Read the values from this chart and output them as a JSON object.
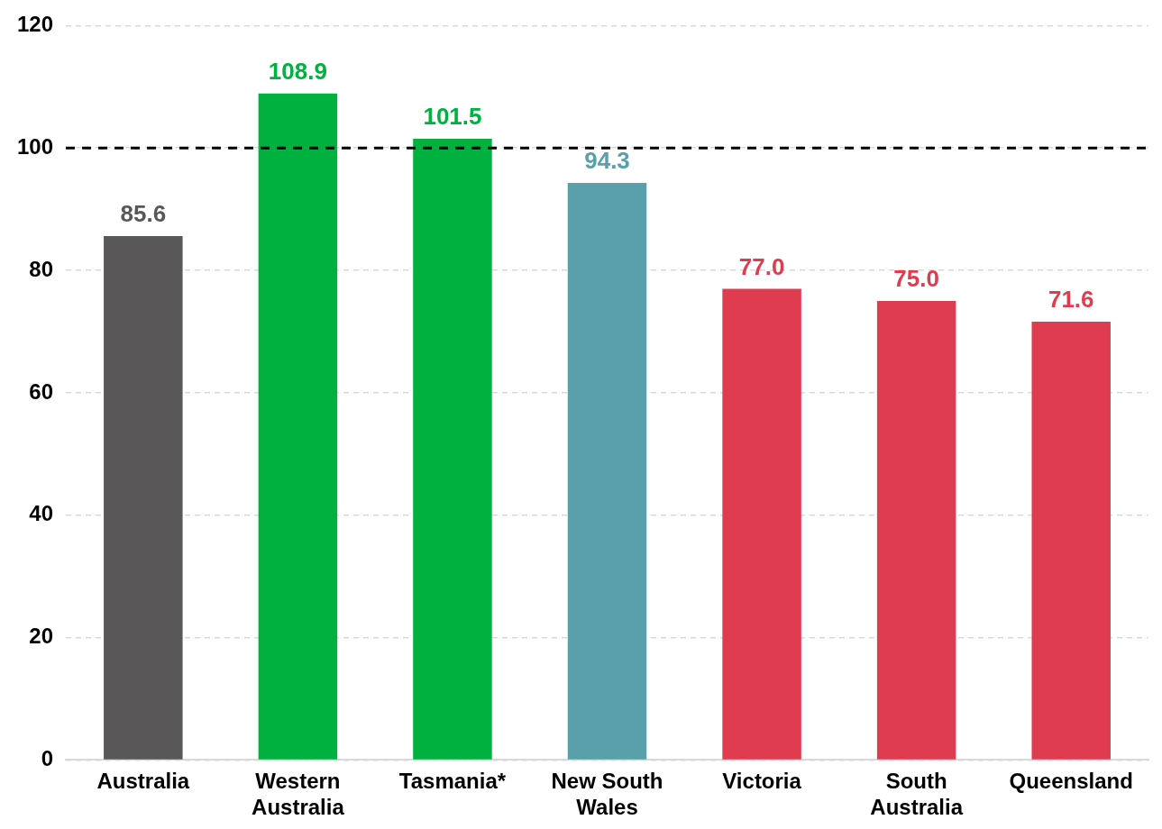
{
  "chart_data": {
    "type": "bar",
    "categories": [
      "Australia",
      "Western Australia",
      "Tasmania*",
      "New South Wales",
      "Victoria",
      "South Australia",
      "Queensland"
    ],
    "values": [
      85.6,
      108.9,
      101.5,
      94.3,
      77.0,
      75.0,
      71.6
    ],
    "colors": [
      "#595758",
      "#00b140",
      "#00b140",
      "#5aa0aa",
      "#e03c50",
      "#e03c50",
      "#e03c50"
    ],
    "value_labels": [
      "85.6",
      "108.9",
      "101.5",
      "94.3",
      "77.0",
      "75.0",
      "71.6"
    ],
    "ylim": [
      0,
      120
    ],
    "yticks": [
      0,
      20,
      40,
      60,
      80,
      100,
      120
    ],
    "grid": "y",
    "legend": false,
    "ref_lines": [
      {
        "axis": "y",
        "value": 100,
        "color": "#000000",
        "line_style": "dashed"
      }
    ]
  }
}
